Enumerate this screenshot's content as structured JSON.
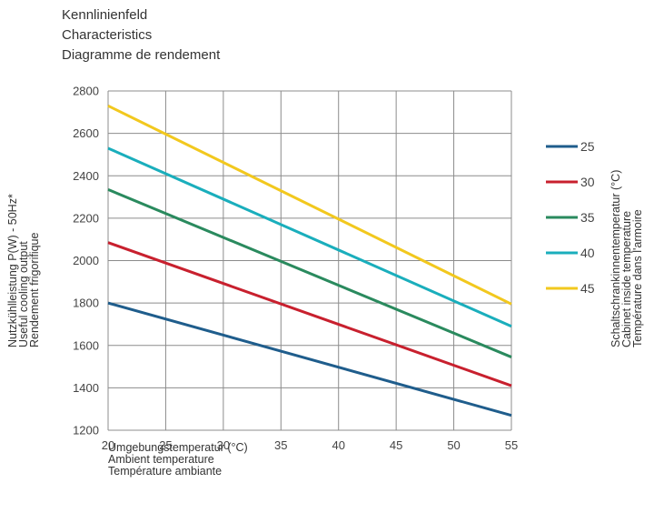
{
  "title_lines": [
    "Kennlinienfeld",
    "Characteristics",
    "Diagramme de rendement"
  ],
  "chart_data": {
    "type": "line",
    "xlabel": [
      "Umgebungstemperatur (°C)",
      "Ambient temperature",
      "Température ambiante"
    ],
    "ylabel": [
      "Nutzkühlleistung P(W) - 50Hz*",
      "Useful cooling output",
      "Rendement frigorifique"
    ],
    "legend_title": [
      "Schaltschrankinnentemperatur (°C)",
      "Cabinet inside temperature",
      "Température dans l'armoire"
    ],
    "legend_placement": "right",
    "grid": true,
    "x": [
      20,
      55
    ],
    "xlim": [
      20,
      55
    ],
    "ylim": [
      1200,
      2800
    ],
    "x_ticks": [
      20,
      25,
      30,
      35,
      40,
      45,
      50,
      55
    ],
    "y_ticks": [
      1200,
      1400,
      1600,
      1800,
      2000,
      2200,
      2400,
      2600,
      2800
    ],
    "series": [
      {
        "name": "25",
        "color": "#1f5d8c",
        "values": [
          1800,
          1270
        ]
      },
      {
        "name": "30",
        "color": "#c8202e",
        "values": [
          2085,
          1410
        ]
      },
      {
        "name": "35",
        "color": "#2a8a5e",
        "values": [
          2335,
          1545
        ]
      },
      {
        "name": "40",
        "color": "#1aaebc",
        "values": [
          2530,
          1690
        ]
      },
      {
        "name": "45",
        "color": "#f2c81e",
        "values": [
          2730,
          1795
        ]
      }
    ]
  }
}
